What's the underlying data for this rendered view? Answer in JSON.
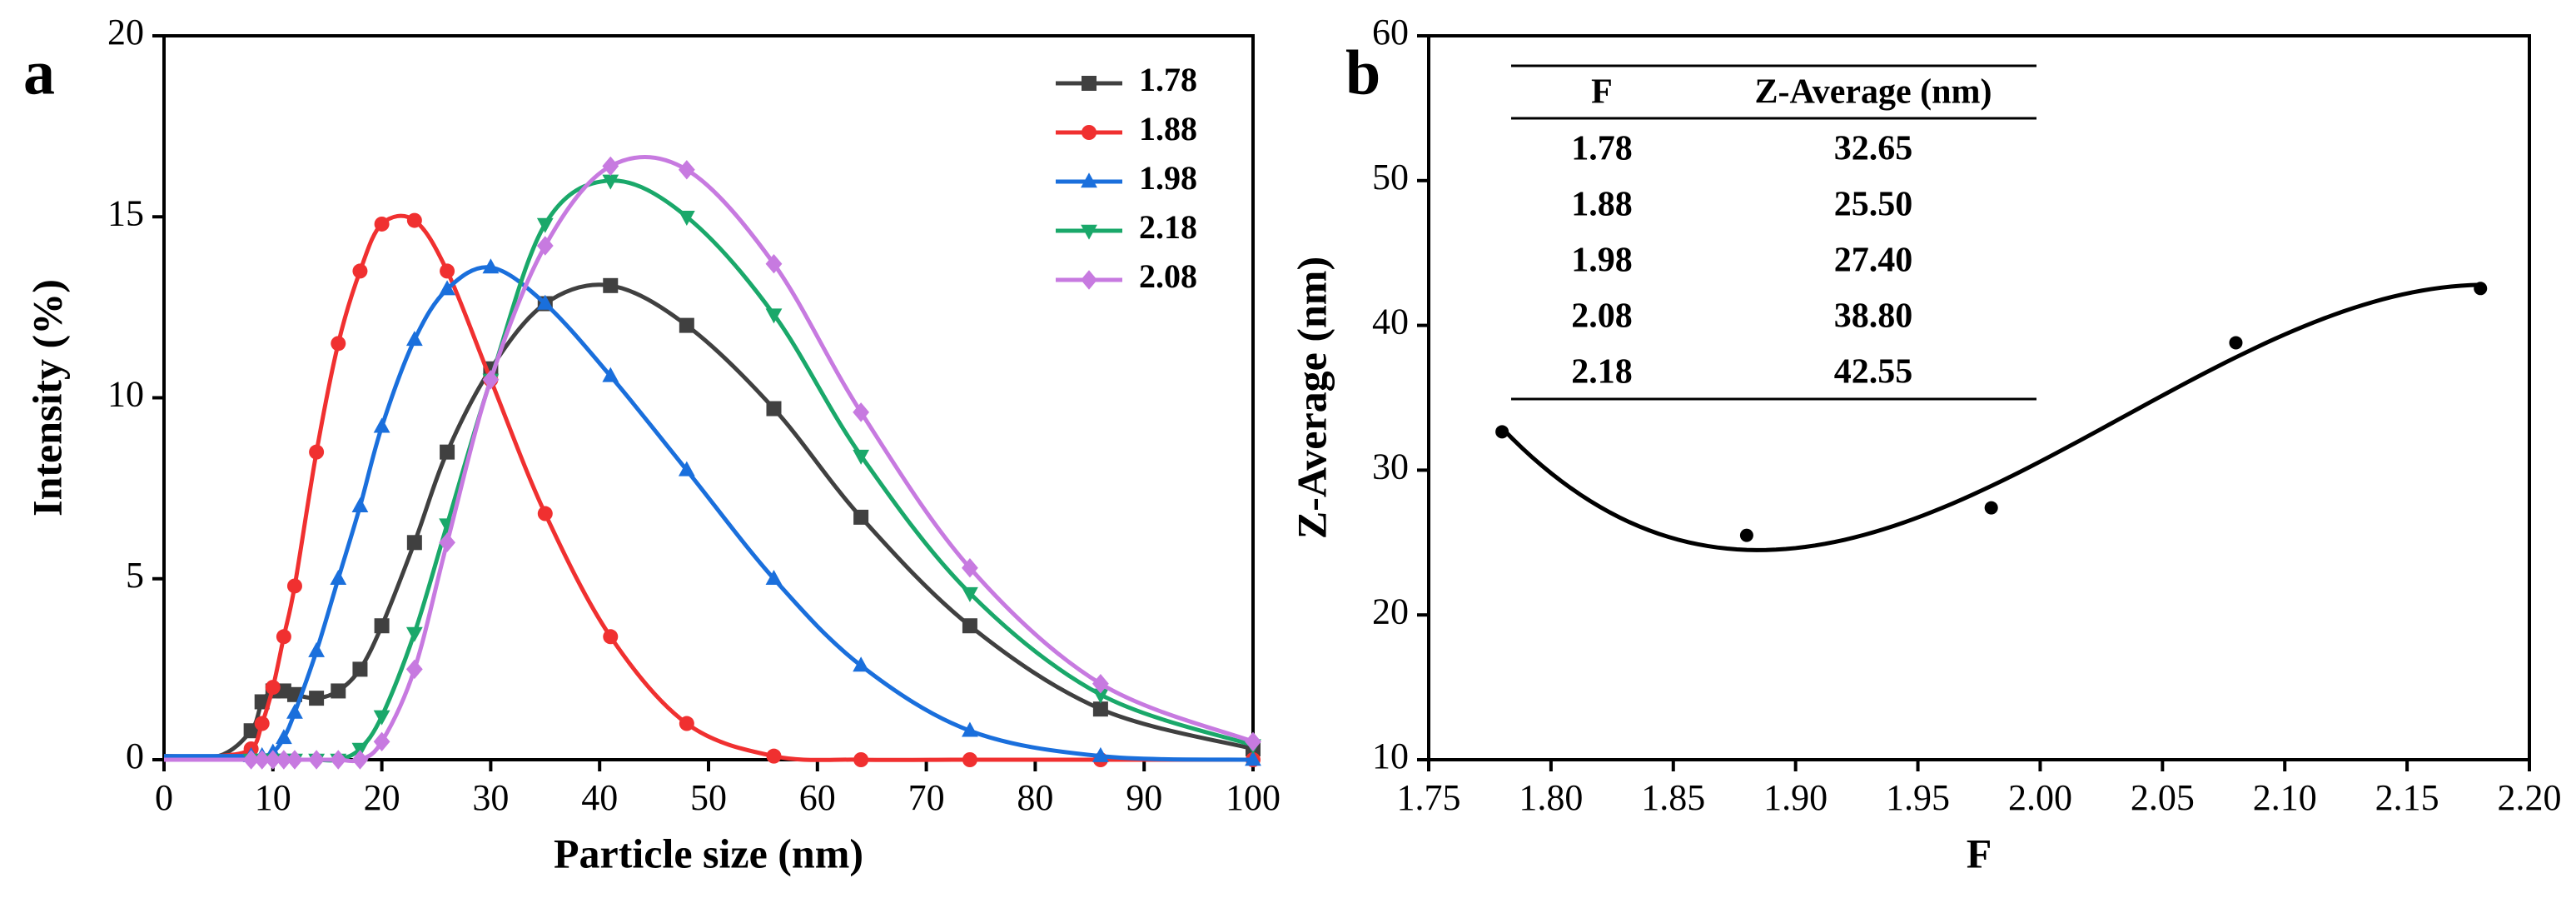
{
  "chart_data": [
    {
      "type": "line",
      "panel_label": "a",
      "xlabel": "Particle size (nm)",
      "ylabel": "Intensity (%)",
      "x": [
        0,
        5,
        8,
        9,
        10,
        11,
        12,
        14,
        16,
        18,
        20,
        23,
        26,
        30,
        35,
        41,
        48,
        56,
        64,
        74,
        86,
        100
      ],
      "series": [
        {
          "name": "1.78",
          "color": "#404040",
          "marker": "square",
          "values": [
            0.1,
            0.1,
            0.8,
            1.6,
            1.9,
            1.9,
            1.8,
            1.7,
            1.9,
            2.5,
            3.7,
            6,
            8.5,
            10.8,
            12.6,
            13.1,
            12,
            9.7,
            6.7,
            3.7,
            1.4,
            0.3
          ]
        },
        {
          "name": "1.88",
          "color": "#f03030",
          "marker": "circle",
          "values": [
            0.1,
            0.1,
            0.3,
            1,
            2,
            3.4,
            4.8,
            8.5,
            11.5,
            13.5,
            14.8,
            14.9,
            13.5,
            10.5,
            6.8,
            3.4,
            1,
            0.1,
            0,
            0,
            0,
            0
          ]
        },
        {
          "name": "1.98",
          "color": "#1a6fdc",
          "marker": "triangle-up",
          "values": [
            0.1,
            0.1,
            0.1,
            0.1,
            0.2,
            0.6,
            1.3,
            3,
            5,
            7,
            9.2,
            11.6,
            13,
            13.6,
            12.6,
            10.6,
            8,
            5,
            2.6,
            0.8,
            0.1,
            0
          ]
        },
        {
          "name": "2.18",
          "color": "#1aa86a",
          "marker": "triangle-down",
          "values": [
            0,
            0,
            0,
            0,
            0,
            0,
            0,
            0,
            0,
            0.3,
            1.2,
            3.5,
            6.5,
            10.5,
            14.8,
            16,
            15,
            12.3,
            8.4,
            4.6,
            1.8,
            0.4
          ]
        },
        {
          "name": "2.08",
          "color": "#c77ae0",
          "marker": "diamond",
          "values": [
            0,
            0,
            0,
            0,
            0,
            0,
            0,
            0,
            0,
            0,
            0.5,
            2.5,
            6,
            10.5,
            14.2,
            16.4,
            16.3,
            13.7,
            9.6,
            5.3,
            2.1,
            0.5
          ]
        }
      ],
      "xlim": [
        0,
        100
      ],
      "xticks": [
        0,
        10,
        20,
        30,
        40,
        50,
        60,
        70,
        80,
        90,
        100
      ],
      "ylim": [
        0,
        20
      ],
      "yticks": [
        0,
        5,
        10,
        15,
        20
      ],
      "legend": "upper right"
    },
    {
      "type": "scatter",
      "panel_label": "b",
      "xlabel": "F",
      "ylabel": "Z-Average (nm)",
      "x": [
        1.78,
        1.88,
        1.98,
        2.08,
        2.18
      ],
      "values": [
        32.65,
        25.5,
        27.4,
        38.8,
        42.55
      ],
      "color": "#000000",
      "fit": "cubic",
      "xlim": [
        1.75,
        2.2
      ],
      "xticks": [
        {
          "value": 1.75,
          "label": "1.75"
        },
        {
          "value": 1.8,
          "label": "1.80"
        },
        {
          "value": 1.85,
          "label": "1.85"
        },
        {
          "value": 1.9,
          "label": "1.90"
        },
        {
          "value": 1.95,
          "label": "1.95"
        },
        {
          "value": 2.0,
          "label": "2.00"
        },
        {
          "value": 2.05,
          "label": "2.05"
        },
        {
          "value": 2.1,
          "label": "2.10"
        },
        {
          "value": 2.15,
          "label": "2.15"
        },
        {
          "value": 2.2,
          "label": "2.20"
        }
      ],
      "ylim": [
        10,
        60
      ],
      "yticks": [
        10,
        20,
        30,
        40,
        50,
        60
      ],
      "table": {
        "columns": [
          "F",
          "Z-Average (nm)"
        ],
        "rows": [
          [
            "1.78",
            "32.65"
          ],
          [
            "1.88",
            "25.50"
          ],
          [
            "1.98",
            "27.40"
          ],
          [
            "2.08",
            "38.80"
          ],
          [
            "2.18",
            "42.55"
          ]
        ]
      }
    }
  ]
}
